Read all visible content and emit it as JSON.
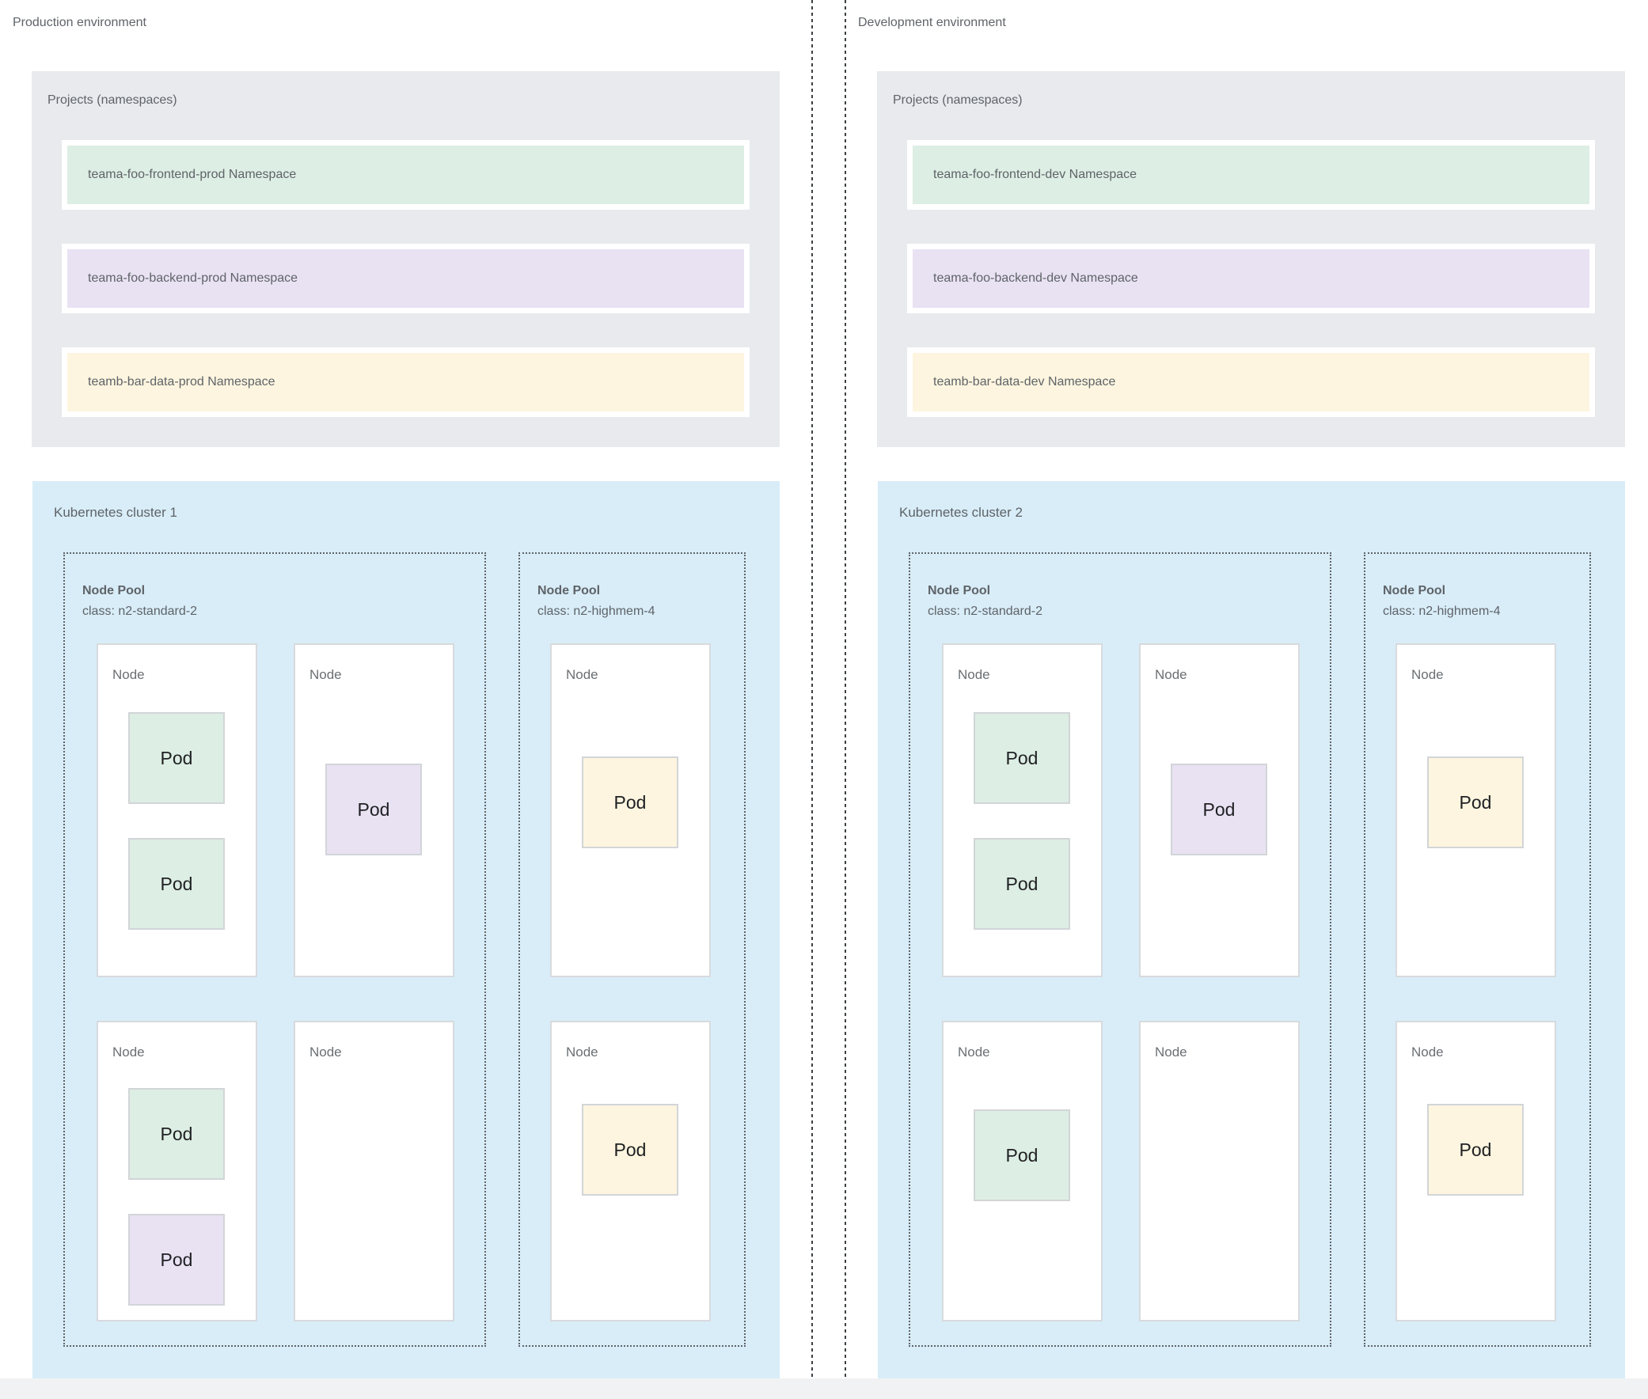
{
  "palette": {
    "green": "#ddeee4",
    "purple": "#e9e2f3",
    "yellow": "#fdf5df",
    "cluster_blue": "#d8edf8",
    "projects_gray": "#e8eaed"
  },
  "environments": [
    {
      "title": "Production environment",
      "projects": {
        "title": "Projects (namespaces)",
        "namespaces": [
          {
            "label": "teama-foo-frontend-prod Namespace",
            "color": "green"
          },
          {
            "label": "teama-foo-backend-prod Namespace",
            "color": "purple"
          },
          {
            "label": "teamb-bar-data-prod Namespace",
            "color": "yellow"
          }
        ]
      },
      "cluster": {
        "title": "Kubernetes cluster 1",
        "node_pools": [
          {
            "title": "Node Pool",
            "machine_class": "class: n2-standard-2",
            "nodes": [
              {
                "label": "Node",
                "pods": [
                  {
                    "label": "Pod",
                    "color": "green"
                  },
                  {
                    "label": "Pod",
                    "color": "green"
                  }
                ]
              },
              {
                "label": "Node",
                "pods": [
                  {
                    "label": "Pod",
                    "color": "purple"
                  }
                ]
              },
              {
                "label": "Node",
                "pods": [
                  {
                    "label": "Pod",
                    "color": "green"
                  },
                  {
                    "label": "Pod",
                    "color": "purple"
                  }
                ]
              },
              {
                "label": "Node",
                "pods": []
              }
            ]
          },
          {
            "title": "Node Pool",
            "machine_class": "class: n2-highmem-4",
            "nodes": [
              {
                "label": "Node",
                "pods": [
                  {
                    "label": "Pod",
                    "color": "yellow"
                  }
                ]
              },
              {
                "label": "Node",
                "pods": [
                  {
                    "label": "Pod",
                    "color": "yellow"
                  }
                ]
              }
            ]
          }
        ]
      }
    },
    {
      "title": "Development environment",
      "projects": {
        "title": "Projects (namespaces)",
        "namespaces": [
          {
            "label": "teama-foo-frontend-dev Namespace",
            "color": "green"
          },
          {
            "label": "teama-foo-backend-dev Namespace",
            "color": "purple"
          },
          {
            "label": "teamb-bar-data-dev Namespace",
            "color": "yellow"
          }
        ]
      },
      "cluster": {
        "title": "Kubernetes cluster 2",
        "node_pools": [
          {
            "title": "Node Pool",
            "machine_class": "class: n2-standard-2",
            "nodes": [
              {
                "label": "Node",
                "pods": [
                  {
                    "label": "Pod",
                    "color": "green"
                  },
                  {
                    "label": "Pod",
                    "color": "green"
                  }
                ]
              },
              {
                "label": "Node",
                "pods": [
                  {
                    "label": "Pod",
                    "color": "purple"
                  }
                ]
              },
              {
                "label": "Node",
                "pods": [
                  {
                    "label": "Pod",
                    "color": "green"
                  }
                ]
              },
              {
                "label": "Node",
                "pods": []
              }
            ]
          },
          {
            "title": "Node Pool",
            "machine_class": "class: n2-highmem-4",
            "nodes": [
              {
                "label": "Node",
                "pods": [
                  {
                    "label": "Pod",
                    "color": "yellow"
                  }
                ]
              },
              {
                "label": "Node",
                "pods": [
                  {
                    "label": "Pod",
                    "color": "yellow"
                  }
                ]
              }
            ]
          }
        ]
      }
    }
  ]
}
